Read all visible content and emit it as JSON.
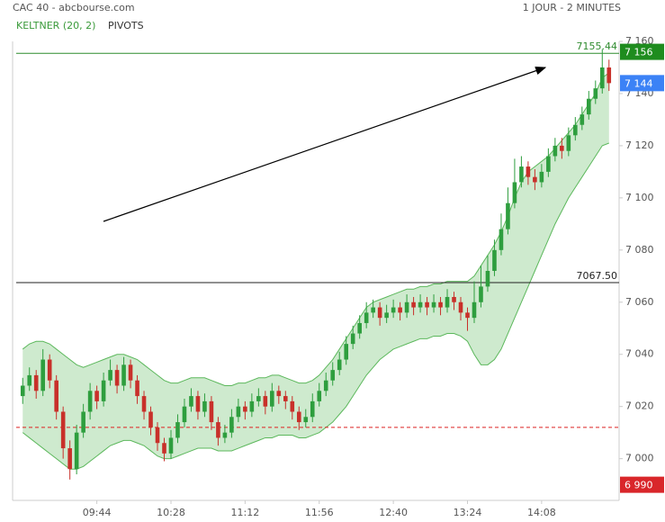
{
  "chart_data": {
    "type": "candlestick",
    "title": "CAC 40 - abcbourse.com",
    "period": "1 JOUR - 2 MINUTES",
    "indicators": [
      "KELTNER (20, 2)",
      "PIVOTS"
    ],
    "up_color": "#2e9e3e",
    "down_color": "#c8302a",
    "band_color": "#5cb85c",
    "xlim": [
      -1.5,
      88.5
    ],
    "xticks": [
      {
        "value": 11,
        "label": "09:44"
      },
      {
        "value": 22,
        "label": "10:28"
      },
      {
        "value": 33,
        "label": "11:12"
      },
      {
        "value": 44,
        "label": "11:56"
      },
      {
        "value": 55,
        "label": "12:40"
      },
      {
        "value": 66,
        "label": "13:24"
      },
      {
        "value": 77,
        "label": "14:08"
      }
    ],
    "ylim": [
      6984,
      7160
    ],
    "yticks": [
      {
        "value": 7000,
        "label": "7 000"
      },
      {
        "value": 7020,
        "label": "7 020"
      },
      {
        "value": 7040,
        "label": "7 040"
      },
      {
        "value": 7060,
        "label": "7 060"
      },
      {
        "value": 7080,
        "label": "7 080"
      },
      {
        "value": 7100,
        "label": "7 100"
      },
      {
        "value": 7120,
        "label": "7 120"
      },
      {
        "value": 7140,
        "label": "7 140"
      },
      {
        "value": 7160,
        "label": "7 160"
      }
    ],
    "ohlc": [
      [
        7024,
        7031,
        7021,
        7028
      ],
      [
        7028,
        7035,
        7026,
        7032
      ],
      [
        7032,
        7034,
        7023,
        7026
      ],
      [
        7026,
        7042,
        7024,
        7038
      ],
      [
        7038,
        7040,
        7027,
        7030
      ],
      [
        7030,
        7032,
        7015,
        7018
      ],
      [
        7018,
        7020,
        7000,
        7004
      ],
      [
        7004,
        7007,
        6992,
        6996
      ],
      [
        6996,
        7013,
        6994,
        7010
      ],
      [
        7010,
        7021,
        7008,
        7018
      ],
      [
        7018,
        7029,
        7015,
        7026
      ],
      [
        7026,
        7028,
        7019,
        7022
      ],
      [
        7022,
        7033,
        7020,
        7030
      ],
      [
        7030,
        7038,
        7028,
        7034
      ],
      [
        7034,
        7036,
        7025,
        7028
      ],
      [
        7028,
        7039,
        7026,
        7036
      ],
      [
        7036,
        7038,
        7027,
        7030
      ],
      [
        7030,
        7032,
        7021,
        7024
      ],
      [
        7024,
        7026,
        7015,
        7018
      ],
      [
        7018,
        7020,
        7009,
        7012
      ],
      [
        7012,
        7014,
        7003,
        7006
      ],
      [
        7006,
        7008,
        6999,
        7002
      ],
      [
        7002,
        7011,
        7000,
        7008
      ],
      [
        7008,
        7017,
        7006,
        7014
      ],
      [
        7014,
        7023,
        7012,
        7020
      ],
      [
        7020,
        7027,
        7018,
        7024
      ],
      [
        7024,
        7026,
        7015,
        7018
      ],
      [
        7018,
        7025,
        7016,
        7022
      ],
      [
        7022,
        7024,
        7011,
        7014
      ],
      [
        7014,
        7016,
        7005,
        7008
      ],
      [
        7008,
        7013,
        7006,
        7010
      ],
      [
        7010,
        7019,
        7008,
        7016
      ],
      [
        7016,
        7023,
        7014,
        7020
      ],
      [
        7020,
        7022,
        7015,
        7018
      ],
      [
        7018,
        7025,
        7016,
        7022
      ],
      [
        7022,
        7027,
        7020,
        7024
      ],
      [
        7024,
        7026,
        7017,
        7020
      ],
      [
        7020,
        7029,
        7018,
        7026
      ],
      [
        7026,
        7028,
        7021,
        7024
      ],
      [
        7024,
        7026,
        7019,
        7022
      ],
      [
        7022,
        7024,
        7015,
        7018
      ],
      [
        7018,
        7020,
        7011,
        7014
      ],
      [
        7014,
        7019,
        7012,
        7016
      ],
      [
        7016,
        7025,
        7014,
        7022
      ],
      [
        7022,
        7029,
        7020,
        7026
      ],
      [
        7026,
        7033,
        7024,
        7030
      ],
      [
        7030,
        7037,
        7028,
        7034
      ],
      [
        7034,
        7041,
        7032,
        7038
      ],
      [
        7038,
        7047,
        7036,
        7044
      ],
      [
        7044,
        7051,
        7042,
        7048
      ],
      [
        7048,
        7055,
        7046,
        7052
      ],
      [
        7052,
        7060,
        7050,
        7056
      ],
      [
        7056,
        7061,
        7054,
        7058
      ],
      [
        7058,
        7060,
        7051,
        7054
      ],
      [
        7054,
        7059,
        7052,
        7056
      ],
      [
        7056,
        7061,
        7054,
        7058
      ],
      [
        7058,
        7060,
        7053,
        7056
      ],
      [
        7056,
        7063,
        7054,
        7060
      ],
      [
        7060,
        7062,
        7055,
        7058
      ],
      [
        7058,
        7063,
        7056,
        7060
      ],
      [
        7060,
        7062,
        7055,
        7058
      ],
      [
        7058,
        7063,
        7056,
        7060
      ],
      [
        7060,
        7062,
        7055,
        7058
      ],
      [
        7058,
        7065,
        7056,
        7062
      ],
      [
        7062,
        7064,
        7057,
        7060
      ],
      [
        7060,
        7062,
        7053,
        7056
      ],
      [
        7056,
        7058,
        7049,
        7054
      ],
      [
        7054,
        7068,
        7052,
        7060
      ],
      [
        7060,
        7074,
        7058,
        7066
      ],
      [
        7066,
        7078,
        7064,
        7072
      ],
      [
        7072,
        7084,
        7070,
        7080
      ],
      [
        7080,
        7094,
        7078,
        7088
      ],
      [
        7088,
        7104,
        7086,
        7098
      ],
      [
        7098,
        7115,
        7096,
        7106
      ],
      [
        7106,
        7116,
        7104,
        7112
      ],
      [
        7112,
        7114,
        7105,
        7108
      ],
      [
        7108,
        7111,
        7103,
        7106
      ],
      [
        7106,
        7113,
        7104,
        7110
      ],
      [
        7110,
        7119,
        7108,
        7116
      ],
      [
        7116,
        7123,
        7114,
        7120
      ],
      [
        7120,
        7123,
        7115,
        7118
      ],
      [
        7118,
        7127,
        7116,
        7124
      ],
      [
        7124,
        7131,
        7122,
        7128
      ],
      [
        7128,
        7135,
        7126,
        7132
      ],
      [
        7132,
        7141,
        7130,
        7138
      ],
      [
        7138,
        7145,
        7136,
        7142
      ],
      [
        7142,
        7157,
        7140,
        7150
      ],
      [
        7150,
        7153,
        7141,
        7144
      ]
    ],
    "keltner_upper": [
      7042,
      7044,
      7045,
      7045,
      7044,
      7042,
      7040,
      7038,
      7036,
      7035,
      7036,
      7037,
      7038,
      7039,
      7040,
      7040,
      7039,
      7038,
      7036,
      7034,
      7032,
      7030,
      7029,
      7029,
      7030,
      7031,
      7031,
      7031,
      7030,
      7029,
      7028,
      7028,
      7029,
      7029,
      7030,
      7031,
      7031,
      7032,
      7032,
      7031,
      7030,
      7029,
      7029,
      7030,
      7032,
      7035,
      7038,
      7042,
      7046,
      7050,
      7054,
      7058,
      7060,
      7061,
      7062,
      7063,
      7064,
      7065,
      7065,
      7066,
      7066,
      7067,
      7067,
      7068,
      7068,
      7068,
      7068,
      7070,
      7074,
      7078,
      7082,
      7087,
      7093,
      7100,
      7106,
      7110,
      7112,
      7114,
      7116,
      7119,
      7122,
      7125,
      7128,
      7132,
      7136,
      7140,
      7146,
      7148
    ],
    "keltner_lower": [
      7010,
      7008,
      7006,
      7004,
      7002,
      7000,
      6998,
      6996,
      6996,
      6997,
      6999,
      7001,
      7003,
      7005,
      7006,
      7007,
      7007,
      7006,
      7005,
      7003,
      7001,
      7000,
      7000,
      7001,
      7002,
      7003,
      7004,
      7004,
      7004,
      7003,
      7003,
      7003,
      7004,
      7005,
      7006,
      7007,
      7008,
      7008,
      7009,
      7009,
      7009,
      7008,
      7008,
      7009,
      7010,
      7012,
      7014,
      7017,
      7020,
      7024,
      7028,
      7032,
      7035,
      7038,
      7040,
      7042,
      7043,
      7044,
      7045,
      7046,
      7046,
      7047,
      7047,
      7048,
      7048,
      7047,
      7045,
      7040,
      7036,
      7036,
      7038,
      7042,
      7048,
      7054,
      7060,
      7066,
      7072,
      7078,
      7084,
      7090,
      7095,
      7100,
      7104,
      7108,
      7112,
      7116,
      7120,
      7121
    ],
    "levels": [
      {
        "value": 7155.44,
        "label": "7155.44",
        "color": "#2e8b2e"
      },
      {
        "value": 7067.5,
        "label": "7067.50",
        "color": "#222222"
      },
      {
        "value": 7012,
        "color": "#d22"
      }
    ],
    "price_tags": [
      {
        "value": 7156,
        "label": "7 156",
        "color": "#1e8c1e"
      },
      {
        "value": 7144,
        "label": "7 144",
        "color": "#3b82f6"
      },
      {
        "value": 6990,
        "label": "6 990",
        "color": "#d9262a"
      }
    ]
  }
}
